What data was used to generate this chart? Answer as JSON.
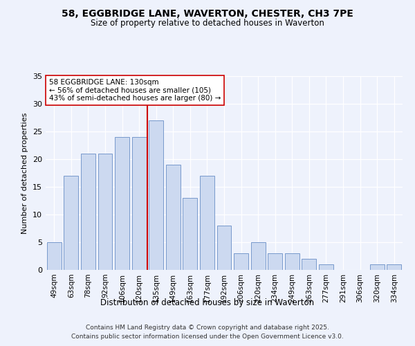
{
  "title": "58, EGGBRIDGE LANE, WAVERTON, CHESTER, CH3 7PE",
  "subtitle": "Size of property relative to detached houses in Waverton",
  "xlabel": "Distribution of detached houses by size in Waverton",
  "ylabel": "Number of detached properties",
  "categories": [
    "49sqm",
    "63sqm",
    "78sqm",
    "92sqm",
    "106sqm",
    "120sqm",
    "135sqm",
    "149sqm",
    "163sqm",
    "177sqm",
    "192sqm",
    "206sqm",
    "220sqm",
    "234sqm",
    "249sqm",
    "263sqm",
    "277sqm",
    "291sqm",
    "306sqm",
    "320sqm",
    "334sqm"
  ],
  "values": [
    5,
    17,
    21,
    21,
    24,
    24,
    27,
    19,
    13,
    17,
    8,
    3,
    5,
    3,
    3,
    2,
    1,
    0,
    0,
    1,
    1
  ],
  "bar_color": "#ccd9f0",
  "bar_edge_color": "#7799cc",
  "vline_x_index": 6,
  "vline_color": "#cc0000",
  "annotation_text": "58 EGGBRIDGE LANE: 130sqm\n← 56% of detached houses are smaller (105)\n43% of semi-detached houses are larger (80) →",
  "annotation_box_color": "#ffffff",
  "annotation_box_edge": "#cc0000",
  "footer_line1": "Contains HM Land Registry data © Crown copyright and database right 2025.",
  "footer_line2": "Contains public sector information licensed under the Open Government Licence v3.0.",
  "background_color": "#eef2fc",
  "ylim": [
    0,
    35
  ],
  "yticks": [
    0,
    5,
    10,
    15,
    20,
    25,
    30,
    35
  ]
}
